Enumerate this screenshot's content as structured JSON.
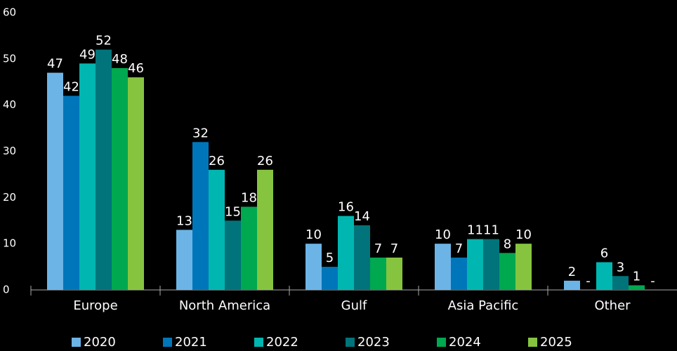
{
  "chart_data": {
    "type": "bar",
    "categories": [
      "Europe",
      "North America",
      "Gulf",
      "Asia Pacific",
      "Other"
    ],
    "series": [
      {
        "name": "2020",
        "color": "#6cb4e6",
        "values": [
          47,
          13,
          10,
          10,
          2
        ]
      },
      {
        "name": "2021",
        "color": "#0076ba",
        "values": [
          42,
          32,
          5,
          7,
          null
        ],
        "value_labels": [
          "42",
          "32",
          "5",
          "7",
          "-"
        ]
      },
      {
        "name": "2022",
        "color": "#00b6b0",
        "values": [
          49,
          26,
          16,
          11,
          6
        ]
      },
      {
        "name": "2023",
        "color": "#00747a",
        "values": [
          52,
          15,
          14,
          11,
          3
        ]
      },
      {
        "name": "2024",
        "color": "#00a84f",
        "values": [
          48,
          18,
          7,
          8,
          1
        ]
      },
      {
        "name": "2025",
        "color": "#86c440",
        "values": [
          46,
          26,
          7,
          10,
          null
        ],
        "value_labels": [
          "46",
          "26",
          "7",
          "10",
          "-"
        ]
      }
    ],
    "ylim": [
      0,
      60
    ],
    "yticks": [
      0,
      10,
      20,
      30,
      40,
      50,
      60
    ],
    "grid": false,
    "legend": "bottom"
  }
}
